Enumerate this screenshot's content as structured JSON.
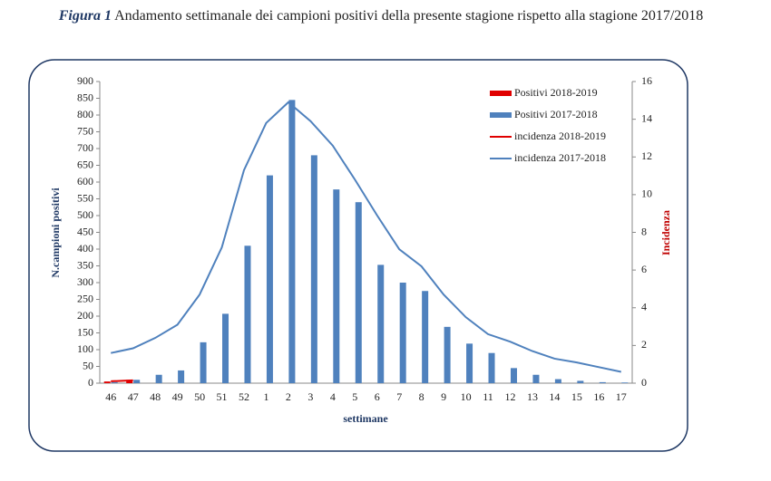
{
  "chart_data": {
    "type": "bar",
    "title_label": "Figura 1",
    "title": "Andamento settimanale dei campioni positivi della presente stagione rispetto alla stagione 2017/2018",
    "ylabel": "N.campioni positivi",
    "y2label": "Incidenza",
    "xlabel": "settimane",
    "categories": [
      "46",
      "47",
      "48",
      "49",
      "50",
      "51",
      "52",
      "1",
      "2",
      "3",
      "4",
      "5",
      "6",
      "7",
      "8",
      "9",
      "10",
      "11",
      "12",
      "13",
      "14",
      "15",
      "16",
      "17"
    ],
    "series": [
      {
        "name": "Positivi 2018-2019",
        "kind": "bar",
        "color": "#e00000",
        "values": [
          5,
          10,
          null,
          null,
          null,
          null,
          null,
          null,
          null,
          null,
          null,
          null,
          null,
          null,
          null,
          null,
          null,
          null,
          null,
          null,
          null,
          null,
          null,
          null
        ]
      },
      {
        "name": "Positivi 2017-2018",
        "kind": "bar",
        "color": "#4f81bd",
        "values": [
          3,
          10,
          25,
          38,
          122,
          207,
          410,
          620,
          845,
          680,
          578,
          540,
          353,
          300,
          275,
          168,
          118,
          90,
          45,
          25,
          12,
          7,
          3,
          2
        ]
      },
      {
        "name": "incidenza 2018-2019",
        "kind": "line",
        "axis": "y2",
        "color": "#e00000",
        "values": [
          0.1,
          0.15,
          null,
          null,
          null,
          null,
          null,
          null,
          null,
          null,
          null,
          null,
          null,
          null,
          null,
          null,
          null,
          null,
          null,
          null,
          null,
          null,
          null,
          null
        ]
      },
      {
        "name": "incidenza 2017-2018",
        "kind": "line",
        "axis": "y2",
        "color": "#4f81bd",
        "values": [
          1.6,
          1.85,
          2.4,
          3.1,
          4.7,
          7.2,
          11.3,
          13.8,
          14.9,
          13.9,
          12.6,
          10.8,
          8.9,
          7.1,
          6.2,
          4.7,
          3.5,
          2.6,
          2.2,
          1.7,
          1.3,
          1.1,
          0.85,
          0.6
        ]
      }
    ],
    "ylim": [
      0,
      900
    ],
    "yticks": [
      0,
      50,
      100,
      150,
      200,
      250,
      300,
      350,
      400,
      450,
      500,
      550,
      600,
      650,
      700,
      750,
      800,
      850,
      900
    ],
    "y2lim": [
      0,
      16
    ],
    "y2ticks": [
      0,
      2,
      4,
      6,
      8,
      10,
      12,
      14,
      16
    ],
    "legend": "upper right",
    "grid": false
  }
}
